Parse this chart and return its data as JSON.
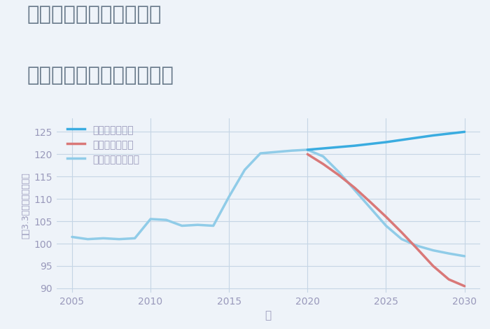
{
  "title_line1": "千葉県夷隅郡御宿町浜の",
  "title_line2": "中古マンションの価格推移",
  "xlabel": "年",
  "ylabel": "坪（3.3㎡）単価（万円）",
  "background_color": "#eef3f9",
  "xlim": [
    2004.0,
    2031.0
  ],
  "ylim": [
    89.0,
    128.0
  ],
  "xticks": [
    2005,
    2010,
    2015,
    2020,
    2025,
    2030
  ],
  "yticks": [
    90,
    95,
    100,
    105,
    110,
    115,
    120,
    125
  ],
  "good_scenario": {
    "label": "グッドシナリオ",
    "color": "#3aace0",
    "x": [
      2020,
      2021,
      2022,
      2023,
      2024,
      2025,
      2026,
      2027,
      2028,
      2029,
      2030
    ],
    "y": [
      121.0,
      121.3,
      121.6,
      121.9,
      122.3,
      122.7,
      123.2,
      123.7,
      124.2,
      124.6,
      125.0
    ]
  },
  "bad_scenario": {
    "label": "バッドシナリオ",
    "color": "#d97878",
    "x": [
      2020,
      2021,
      2022,
      2023,
      2024,
      2025,
      2026,
      2027,
      2028,
      2029,
      2030
    ],
    "y": [
      120.0,
      117.8,
      115.3,
      112.5,
      109.3,
      106.0,
      102.5,
      98.8,
      95.0,
      92.0,
      90.5
    ]
  },
  "normal_scenario": {
    "label": "ノーマルシナリオ",
    "color": "#90cce8",
    "x": [
      2005,
      2006,
      2007,
      2008,
      2009,
      2010,
      2011,
      2012,
      2013,
      2014,
      2015,
      2016,
      2017,
      2018,
      2019,
      2020,
      2021,
      2022,
      2023,
      2024,
      2025,
      2026,
      2027,
      2028,
      2029,
      2030
    ],
    "y": [
      101.5,
      101.0,
      101.2,
      101.0,
      101.2,
      105.5,
      105.3,
      104.0,
      104.2,
      104.0,
      110.5,
      116.5,
      120.2,
      120.5,
      120.8,
      121.0,
      119.5,
      116.0,
      112.0,
      108.0,
      104.0,
      101.0,
      99.5,
      98.5,
      97.8,
      97.2
    ]
  },
  "title_color": "#667788",
  "title_fontsize": 21,
  "axis_label_color": "#9999bb",
  "grid_color": "#c5d5e5",
  "tick_color": "#9999bb",
  "line_width": 2.5
}
